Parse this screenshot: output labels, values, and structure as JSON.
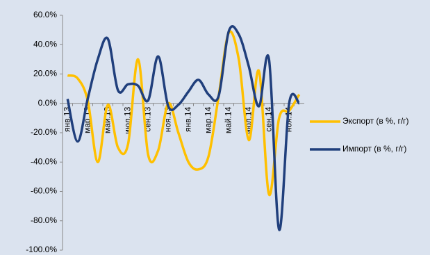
{
  "chart_data": {
    "type": "line",
    "categories": [
      "янв.13",
      null,
      "мар.13",
      null,
      "май.13",
      null,
      "июл.13",
      null,
      "сен.13",
      null,
      "ноя.13",
      null,
      "янв.14",
      null,
      "мар.14",
      null,
      "май.14",
      null,
      "июл.14",
      null,
      "сен.14",
      null,
      "ноя.14",
      null
    ],
    "series": [
      {
        "name": "Экспорт (в %, г/г)",
        "color": "#ffc000",
        "values": [
          19,
          17,
          2,
          -40,
          -1,
          -30,
          -28,
          30,
          -35,
          -32,
          0,
          -20,
          -40,
          -45,
          -36,
          5,
          48,
          30,
          -25,
          22,
          -62,
          -10,
          -5,
          6
        ]
      },
      {
        "name": "Импорт (в %, г/г)",
        "color": "#203f7c",
        "values": [
          3,
          -26,
          3,
          30,
          44,
          9,
          13,
          12,
          2,
          32,
          -2,
          -1,
          8,
          16,
          6,
          5,
          49,
          47,
          25,
          -2,
          30,
          -86,
          0,
          0
        ]
      }
    ],
    "ylim": [
      -100,
      60
    ],
    "yticks": [
      {
        "value": -100,
        "label": "-100.0%"
      },
      {
        "value": -80,
        "label": "-80.0%"
      },
      {
        "value": -60,
        "label": "-60.0%"
      },
      {
        "value": -40,
        "label": "-40.0%"
      },
      {
        "value": -20,
        "label": "-20.0%"
      },
      {
        "value": 0,
        "label": "0.0%"
      },
      {
        "value": 20,
        "label": "20.0%"
      },
      {
        "value": 40,
        "label": "40.0%"
      },
      {
        "value": 60,
        "label": "60.0%"
      }
    ],
    "legend": "right"
  }
}
